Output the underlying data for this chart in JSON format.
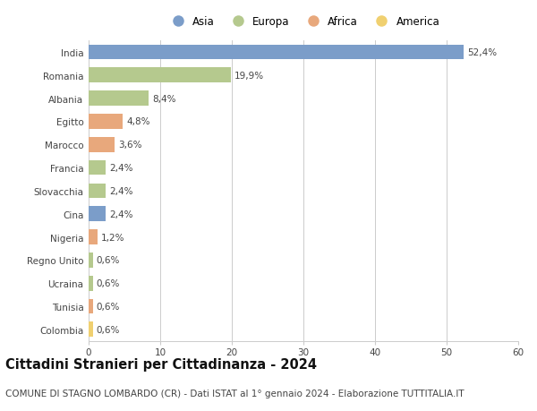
{
  "categories": [
    "India",
    "Romania",
    "Albania",
    "Egitto",
    "Marocco",
    "Francia",
    "Slovacchia",
    "Cina",
    "Nigeria",
    "Regno Unito",
    "Ucraina",
    "Tunisia",
    "Colombia"
  ],
  "values": [
    52.4,
    19.9,
    8.4,
    4.8,
    3.6,
    2.4,
    2.4,
    2.4,
    1.2,
    0.6,
    0.6,
    0.6,
    0.6
  ],
  "labels": [
    "52,4%",
    "19,9%",
    "8,4%",
    "4,8%",
    "3,6%",
    "2,4%",
    "2,4%",
    "2,4%",
    "1,2%",
    "0,6%",
    "0,6%",
    "0,6%",
    "0,6%"
  ],
  "continents": [
    "Asia",
    "Europa",
    "Europa",
    "Africa",
    "Africa",
    "Europa",
    "Europa",
    "Asia",
    "Africa",
    "Europa",
    "Europa",
    "Africa",
    "America"
  ],
  "continent_colors": {
    "Asia": "#7b9dc9",
    "Europa": "#b5c98e",
    "Africa": "#e8a87c",
    "America": "#f0d070"
  },
  "legend_order": [
    "Asia",
    "Europa",
    "Africa",
    "America"
  ],
  "title": "Cittadini Stranieri per Cittadinanza - 2024",
  "subtitle": "COMUNE DI STAGNO LOMBARDO (CR) - Dati ISTAT al 1° gennaio 2024 - Elaborazione TUTTITALIA.IT",
  "xlim": [
    0,
    60
  ],
  "xticks": [
    0,
    10,
    20,
    30,
    40,
    50,
    60
  ],
  "background_color": "#ffffff",
  "grid_color": "#cccccc",
  "bar_height": 0.65,
  "title_fontsize": 10.5,
  "subtitle_fontsize": 7.5,
  "label_fontsize": 7.5,
  "tick_fontsize": 7.5,
  "legend_fontsize": 8.5
}
